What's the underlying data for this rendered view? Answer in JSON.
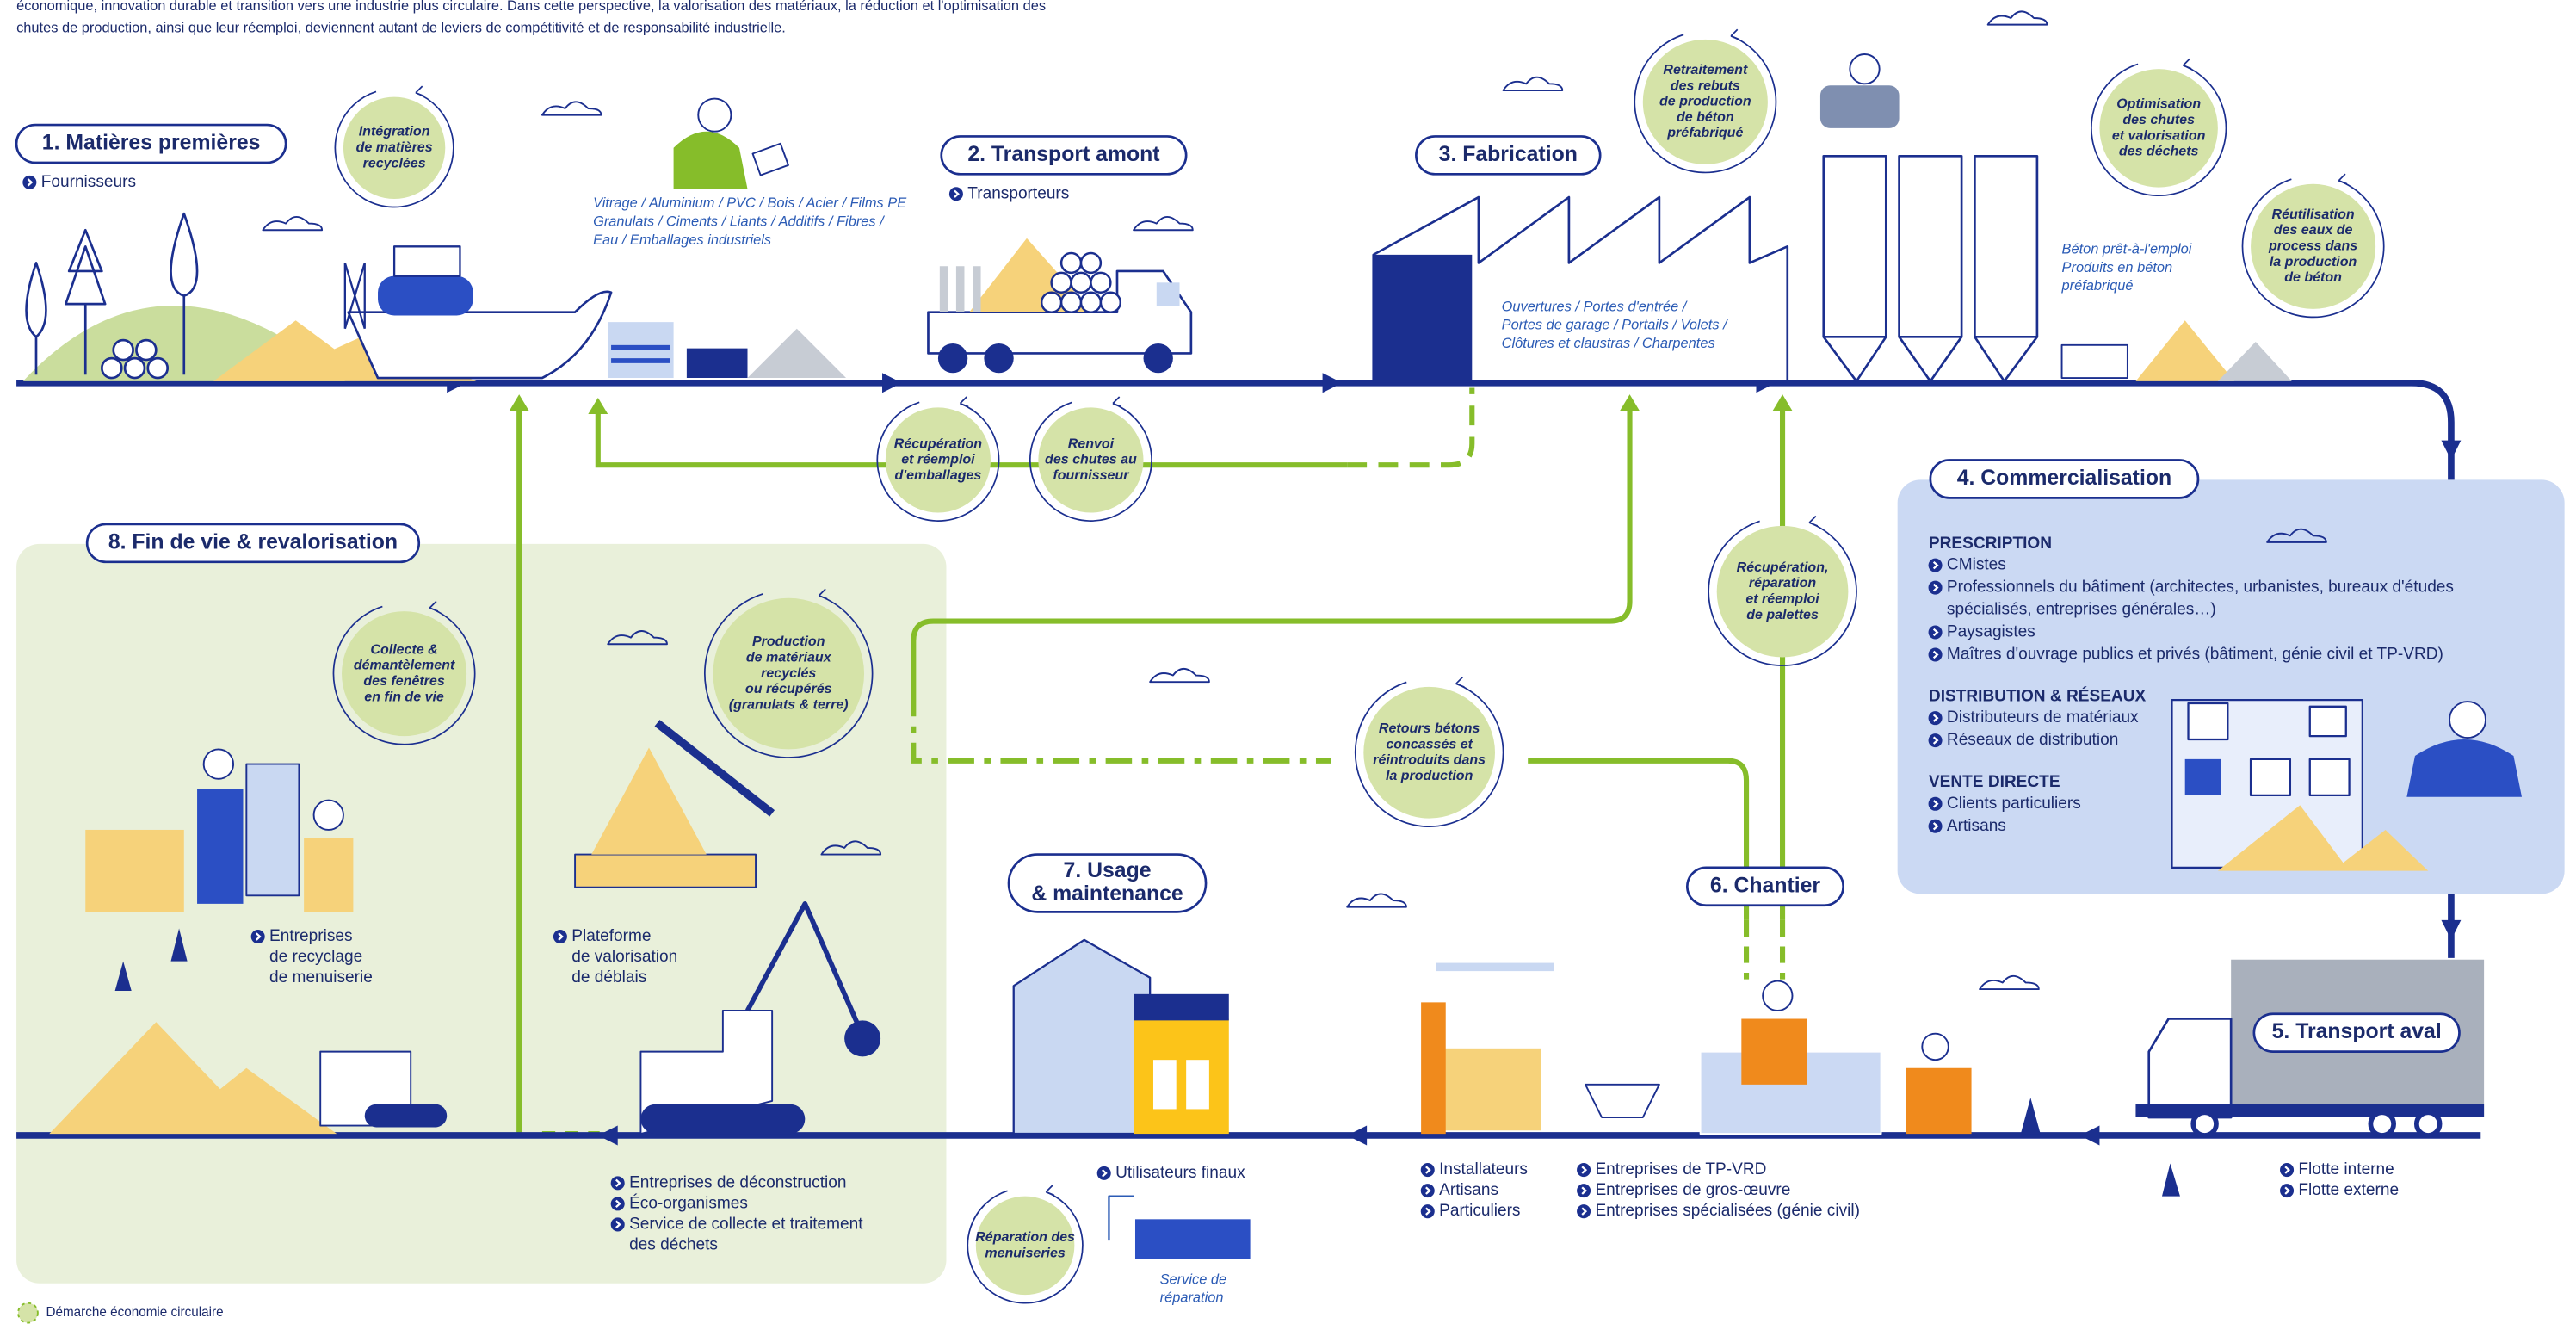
{
  "intro": [
    "économique, innovation durable et transition vers une industrie plus circulaire. Dans cette perspective, la valorisation des matériaux, la réduction et l'optimisation des",
    "chutes de production, ainsi que leur réemploi, deviennent autant de leviers de compétitivité et de responsabilité industrielle."
  ],
  "stages": [
    {
      "title": [
        "1. Matières premières"
      ],
      "actor_groups": [
        [
          [
            "Fournisseurs"
          ]
        ]
      ]
    },
    {
      "title": [
        "2. Transport amont"
      ],
      "actor_groups": [
        [
          [
            "Transporteurs"
          ]
        ]
      ]
    },
    {
      "title": [
        "3. Fabrication"
      ]
    },
    {
      "title": [
        "4. Commercialisation"
      ],
      "sections": [
        {
          "heading": "PRESCRIPTION",
          "items": [
            [
              "CMistes"
            ],
            [
              "Professionnels du bâtiment (architectes, urbanistes, bureaux d'études",
              "spécialisés, entreprises générales…)"
            ],
            [
              "Paysagistes"
            ],
            [
              "Maîtres d'ouvrage publics et privés (bâtiment, génie civil et TP-VRD)"
            ]
          ]
        },
        {
          "heading": "DISTRIBUTION & RÉSEAUX",
          "items": [
            [
              "Distributeurs de matériaux"
            ],
            [
              "Réseaux de distribution"
            ]
          ]
        },
        {
          "heading": "VENTE DIRECTE",
          "items": [
            [
              "Clients particuliers"
            ],
            [
              "Artisans"
            ]
          ]
        }
      ]
    },
    {
      "title": [
        "5. Transport aval"
      ],
      "actor_groups": [
        [
          [
            "Flotte interne"
          ],
          [
            "Flotte externe"
          ]
        ]
      ]
    },
    {
      "title": [
        "6. Chantier"
      ],
      "actor_groups": [
        [
          [
            "Entreprises de TP-VRD"
          ],
          [
            "Entreprises de gros-œuvre"
          ],
          [
            "Entreprises spécialisées (génie civil)"
          ]
        ],
        [
          [
            "Installateurs"
          ],
          [
            "Artisans"
          ],
          [
            "Particuliers"
          ]
        ]
      ]
    },
    {
      "title": [
        "7. Usage",
        "& maintenance"
      ],
      "actor_groups": [
        [
          [
            "Utilisateurs finaux"
          ]
        ]
      ],
      "service": [
        "Service de",
        "réparation"
      ]
    },
    {
      "title": [
        "8. Fin de vie & revalorisation"
      ],
      "actor_groups": [
        [
          [
            "Entreprises",
            "de recyclage",
            "de menuiserie"
          ]
        ],
        [
          [
            "Plateforme",
            "de valorisation",
            "de déblais"
          ]
        ],
        [
          [
            "Entreprises de déconstruction"
          ],
          [
            "Éco-organismes"
          ],
          [
            "Service de collecte et traitement",
            "des déchets"
          ]
        ]
      ]
    }
  ],
  "notes": [
    [
      "Vitrage / Aluminium / PVC / Bois / Acier / Films PE",
      "Granulats / Ciments / Liants / Additifs / Fibres /",
      "Eau / Emballages industriels"
    ],
    [
      "Ouvertures / Portes d'entrée /",
      "Portes de garage / Portails / Volets /",
      "Clôtures et claustras / Charpentes"
    ],
    [
      "Béton prêt-à-l'emploi",
      "Produits en béton",
      "préfabriqué"
    ]
  ],
  "badges": [
    [
      "Intégration",
      "de matières",
      "recyclées"
    ],
    [
      "Retraitement",
      "des rebuts",
      "de production",
      "de béton",
      "préfabriqué"
    ],
    [
      "Optimisation",
      "des chutes",
      "et valorisation",
      "des déchets"
    ],
    [
      "Réutilisation",
      "des eaux de",
      "process dans",
      "la production",
      "de béton"
    ],
    [
      "Récupération",
      "et réemploi",
      "d'emballages"
    ],
    [
      "Renvoi",
      "des chutes au",
      "fournisseur"
    ],
    [
      "Récupération,",
      "réparation",
      "et réemploi",
      "de palettes"
    ],
    [
      "Retours bétons",
      "concassés et",
      "réintroduits dans",
      "la production"
    ],
    [
      "Production",
      "de matériaux",
      "recyclés",
      "ou récupérés",
      "(granulats & terre)"
    ],
    [
      "Collecte &",
      "démantèlement",
      "des fenêtres",
      "en fin de vie"
    ],
    [
      "Réparation des",
      "menuiseries"
    ]
  ],
  "legend": "Démarche économie circulaire"
}
